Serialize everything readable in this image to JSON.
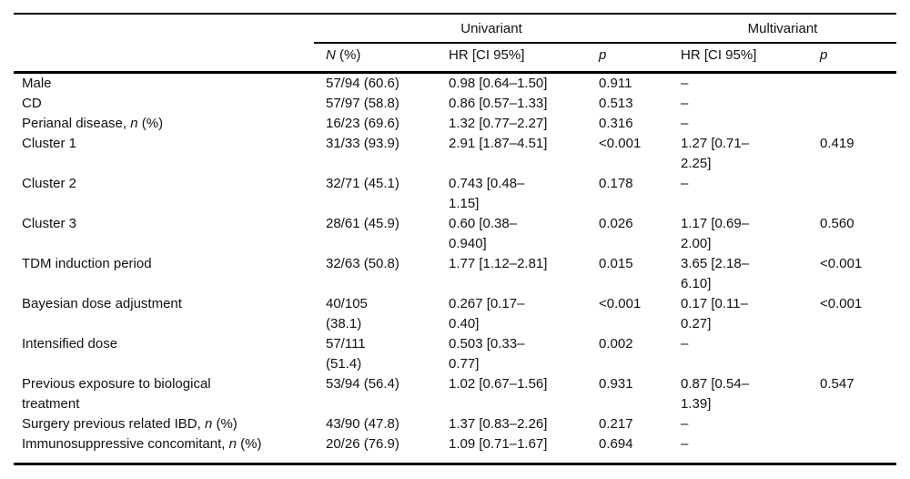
{
  "table": {
    "group_headers": {
      "univariant": "Univariant",
      "multivariant": "Multivariant"
    },
    "columns": {
      "n_italic": "N",
      "n_rest": " (%)",
      "hr_uni": "HR [CI 95%]",
      "p_uni": "p",
      "hr_multi": "HR [CI 95%]",
      "p_multi": "p"
    },
    "rows": [
      {
        "pre": "Male",
        "it": "",
        "post": "",
        "n": "57/94 (60.6)",
        "hr_uni": "0.98 [0.64–1.50]",
        "p_uni": "0.911",
        "hr_multi": "–",
        "p_multi": ""
      },
      {
        "pre": "CD",
        "it": "",
        "post": "",
        "n": "57/97 (58.8)",
        "hr_uni": "0.86 [0.57–1.33]",
        "p_uni": "0.513",
        "hr_multi": "–",
        "p_multi": ""
      },
      {
        "pre": "Perianal disease, ",
        "it": "n",
        "post": " (%)",
        "n": "16/23 (69.6)",
        "hr_uni": "1.32 [0.77–2.27]",
        "p_uni": "0.316",
        "hr_multi": "–",
        "p_multi": ""
      },
      {
        "pre": "Cluster 1",
        "it": "",
        "post": "",
        "n": "31/33 (93.9)",
        "hr_uni": "2.91 [1.87–4.51]",
        "p_uni": "<0.001",
        "hr_multi": "1.27 [0.71–\n2.25]",
        "p_multi": "0.419"
      },
      {
        "pre": "Cluster 2",
        "it": "",
        "post": "",
        "n": "32/71 (45.1)",
        "hr_uni": "0.743 [0.48–\n1.15]",
        "p_uni": "0.178",
        "hr_multi": "–",
        "p_multi": ""
      },
      {
        "pre": "Cluster 3",
        "it": "",
        "post": "",
        "n": "28/61 (45.9)",
        "hr_uni": "0.60 [0.38–\n0.940]",
        "p_uni": "0.026",
        "hr_multi": "1.17 [0.69–\n2.00]",
        "p_multi": "0.560"
      },
      {
        "pre": "TDM induction period",
        "it": "",
        "post": "",
        "n": "32/63 (50.8)",
        "hr_uni": "1.77 [1.12–2.81]",
        "p_uni": "0.015",
        "hr_multi": "3.65 [2.18–\n6.10]",
        "p_multi": "<0.001"
      },
      {
        "pre": "Bayesian dose adjustment",
        "it": "",
        "post": "",
        "n": "40/105\n(38.1)",
        "hr_uni": "0.267 [0.17–\n0.40]",
        "p_uni": "<0.001",
        "hr_multi": "0.17 [0.11–\n0.27]",
        "p_multi": "<0.001"
      },
      {
        "pre": "Intensified dose",
        "it": "",
        "post": "",
        "n": "57/111\n(51.4)",
        "hr_uni": "0.503 [0.33–\n0.77]",
        "p_uni": "0.002",
        "hr_multi": "–",
        "p_multi": ""
      },
      {
        "pre": "Previous exposure to biological\ntreatment",
        "it": "",
        "post": "",
        "n": "53/94 (56.4)",
        "hr_uni": "1.02 [0.67–1.56]",
        "p_uni": "0.931",
        "hr_multi": "0.87 [0.54–\n1.39]",
        "p_multi": "0.547"
      },
      {
        "pre": "Surgery previous related IBD, ",
        "it": "n",
        "post": " (%)",
        "n": "43/90 (47.8)",
        "hr_uni": "1.37 [0.83–2.26]",
        "p_uni": "0.217",
        "hr_multi": "–",
        "p_multi": ""
      },
      {
        "pre": "Immunosuppressive concomitant, ",
        "it": "n",
        "post": " (%)",
        "n": "20/26 (76.9)",
        "hr_uni": "1.09 [0.71–1.67]",
        "p_uni": "0.694",
        "hr_multi": "–",
        "p_multi": ""
      }
    ]
  }
}
